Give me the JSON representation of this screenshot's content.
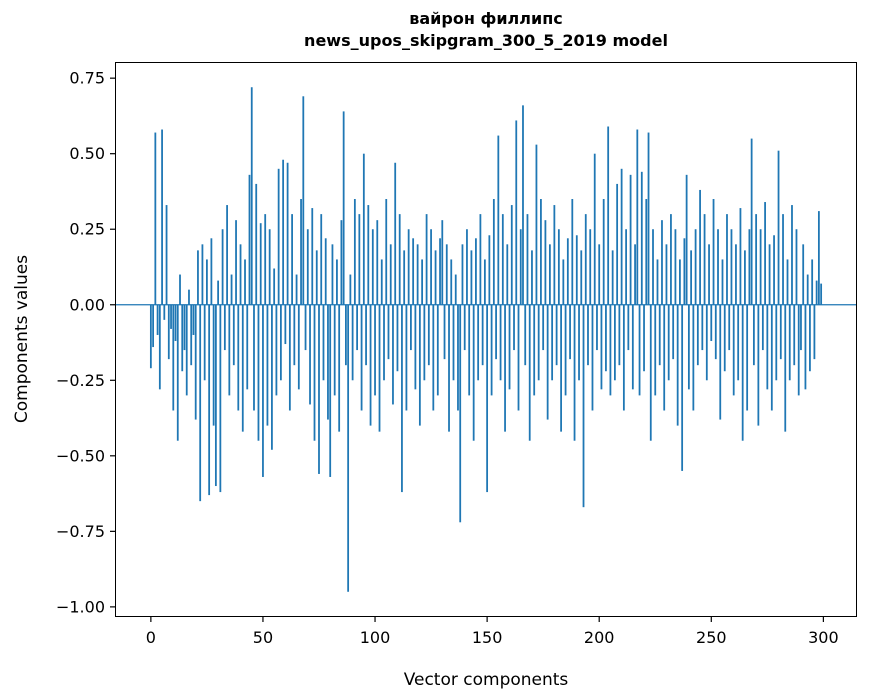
{
  "chart_data": {
    "type": "bar",
    "title_line1": "вайрон филлипс",
    "title_line2": "news_upos_skipgram_300_5_2019 model",
    "xlabel": "Vector components",
    "ylabel": "Components values",
    "xlim": [
      -16,
      315
    ],
    "ylim": [
      -1.0335,
      0.8035
    ],
    "xticks": [
      0,
      50,
      100,
      150,
      200,
      250,
      300
    ],
    "xtick_labels": [
      "0",
      "50",
      "100",
      "150",
      "200",
      "250",
      "300"
    ],
    "yticks": [
      0.75,
      0.5,
      0.25,
      0.0,
      -0.25,
      -0.5,
      -0.75,
      -1.0
    ],
    "ytick_labels": [
      "0.75",
      "0.50",
      "0.25",
      "0.00",
      "−0.25",
      "−0.50",
      "−0.75",
      "−1.00"
    ],
    "bar_color": "#1f77b4",
    "spine_color": "#000000",
    "grid": false,
    "legend": null,
    "values": [
      -0.21,
      -0.14,
      0.57,
      -0.1,
      -0.28,
      0.58,
      -0.05,
      0.33,
      -0.18,
      -0.08,
      -0.35,
      -0.12,
      -0.45,
      0.1,
      -0.22,
      -0.15,
      -0.3,
      0.05,
      -0.2,
      -0.1,
      -0.38,
      0.18,
      -0.65,
      0.2,
      -0.25,
      0.15,
      -0.63,
      0.22,
      -0.4,
      -0.6,
      0.08,
      -0.62,
      0.25,
      -0.15,
      0.33,
      -0.3,
      0.1,
      -0.2,
      0.28,
      -0.35,
      0.2,
      -0.42,
      0.15,
      -0.28,
      0.43,
      0.72,
      -0.35,
      0.4,
      -0.45,
      0.27,
      -0.57,
      0.3,
      -0.4,
      0.25,
      -0.48,
      0.12,
      -0.3,
      0.45,
      -0.25,
      0.48,
      -0.13,
      0.47,
      -0.35,
      0.3,
      -0.2,
      0.1,
      -0.28,
      0.35,
      0.69,
      -0.15,
      0.25,
      -0.33,
      0.32,
      -0.45,
      0.18,
      -0.56,
      0.3,
      -0.25,
      0.22,
      -0.38,
      -0.57,
      0.2,
      -0.3,
      0.15,
      -0.42,
      0.28,
      0.64,
      -0.2,
      -0.95,
      0.1,
      -0.25,
      0.35,
      -0.15,
      0.3,
      -0.35,
      0.5,
      -0.2,
      0.33,
      -0.4,
      0.25,
      -0.3,
      0.28,
      -0.42,
      0.15,
      -0.25,
      0.35,
      -0.18,
      0.2,
      -0.33,
      0.47,
      -0.22,
      0.3,
      -0.62,
      0.18,
      -0.35,
      0.25,
      -0.15,
      0.22,
      -0.28,
      0.2,
      -0.4,
      0.15,
      -0.25,
      0.3,
      -0.2,
      0.25,
      -0.35,
      0.18,
      -0.3,
      0.22,
      0.28,
      -0.18,
      0.2,
      -0.42,
      0.15,
      -0.25,
      0.1,
      -0.35,
      -0.72,
      0.2,
      -0.15,
      0.25,
      -0.3,
      0.18,
      -0.45,
      0.22,
      -0.25,
      0.3,
      -0.2,
      0.15,
      -0.62,
      0.23,
      -0.3,
      0.35,
      -0.18,
      0.56,
      -0.25,
      0.3,
      -0.42,
      0.2,
      -0.28,
      0.33,
      -0.15,
      0.61,
      -0.35,
      0.25,
      0.66,
      -0.2,
      0.3,
      -0.45,
      0.18,
      -0.3,
      0.53,
      -0.25,
      0.35,
      -0.15,
      0.28,
      -0.38,
      0.2,
      -0.25,
      0.33,
      -0.2,
      0.25,
      -0.42,
      0.15,
      -0.3,
      0.22,
      -0.18,
      0.35,
      -0.45,
      0.23,
      -0.25,
      0.18,
      -0.67,
      0.3,
      -0.2,
      0.25,
      -0.35,
      0.5,
      -0.15,
      0.2,
      -0.28,
      0.35,
      -0.22,
      0.59,
      -0.3,
      0.18,
      -0.25,
      0.4,
      -0.2,
      0.45,
      -0.35,
      0.25,
      -0.15,
      0.43,
      -0.28,
      0.2,
      0.58,
      -0.3,
      0.44,
      -0.22,
      0.35,
      0.57,
      -0.45,
      0.25,
      -0.3,
      0.15,
      -0.2,
      0.28,
      -0.35,
      0.2,
      -0.25,
      0.3,
      -0.18,
      0.25,
      -0.4,
      0.15,
      -0.55,
      0.22,
      0.43,
      -0.28,
      0.18,
      -0.35,
      0.25,
      -0.2,
      0.38,
      -0.15,
      0.3,
      -0.25,
      0.2,
      -0.12,
      0.35,
      -0.18,
      0.25,
      -0.38,
      0.15,
      -0.22,
      0.3,
      -0.15,
      0.25,
      -0.3,
      0.2,
      -0.25,
      0.32,
      -0.45,
      0.18,
      -0.35,
      0.25,
      0.55,
      -0.2,
      0.3,
      -0.4,
      0.25,
      -0.15,
      0.34,
      -0.28,
      0.2,
      -0.35,
      0.23,
      -0.25,
      0.51,
      -0.18,
      0.3,
      -0.42,
      0.15,
      -0.25,
      0.33,
      -0.2,
      0.25,
      -0.3,
      -0.15,
      0.2,
      -0.28,
      0.1,
      -0.22,
      0.15,
      -0.18,
      0.08,
      0.31,
      0.07
    ]
  }
}
